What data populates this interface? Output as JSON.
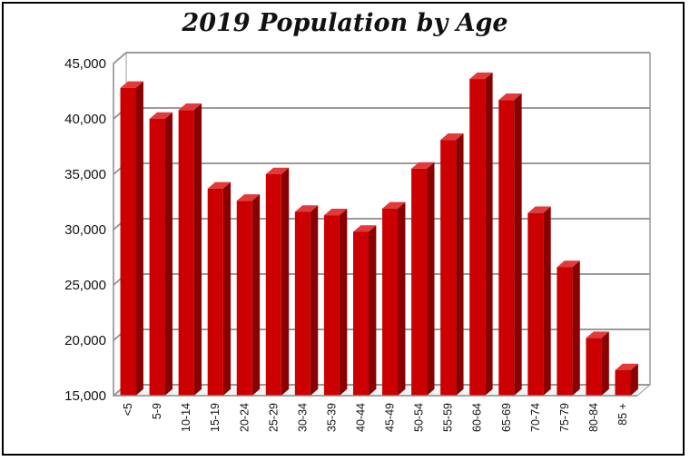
{
  "chart_data": {
    "type": "bar",
    "title": "2019 Population by Age",
    "xlabel": "",
    "ylabel": "",
    "categories": [
      "<5",
      "5-9",
      "10-14",
      "15-19",
      "20-24",
      "25-29",
      "30-34",
      "35-39",
      "40-44",
      "45-49",
      "50-54",
      "55-59",
      "60-64",
      "65-69",
      "70-74",
      "75-79",
      "80-84",
      "85 +"
    ],
    "values": [
      42800,
      40000,
      40800,
      33700,
      32600,
      35000,
      31600,
      31300,
      29800,
      31900,
      35500,
      38100,
      43600,
      41700,
      31500,
      26600,
      20200,
      17300
    ],
    "ylim": [
      15000,
      45000
    ],
    "yticks": [
      "15,000",
      "20,000",
      "25,000",
      "30,000",
      "35,000",
      "40,000",
      "45,000"
    ],
    "grid": true,
    "legend": "none",
    "colors": {
      "bar_front": "#cc0000",
      "bar_side": "#8a0000",
      "bar_top": "#e23a3a",
      "grid": "#9a9a9a"
    }
  }
}
